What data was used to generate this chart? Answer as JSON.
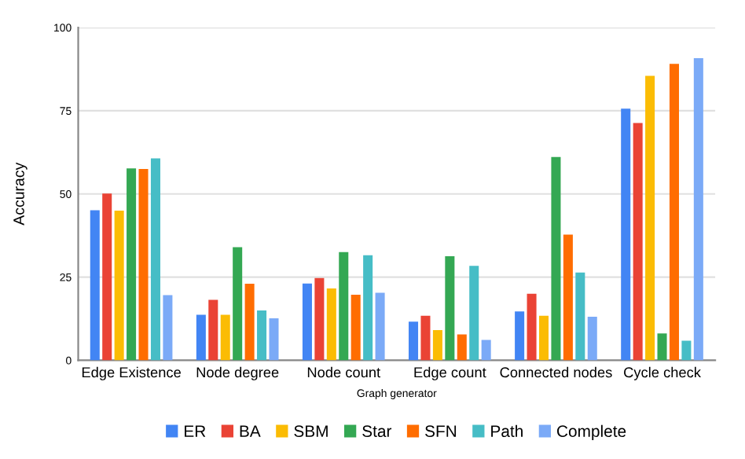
{
  "chart_data": {
    "type": "bar",
    "xlabel": "Graph generator",
    "ylabel": "Accuracy",
    "categories": [
      "Edge Existence",
      "Node degree",
      "Node count",
      "Edge count",
      "Connected nodes",
      "Cycle check"
    ],
    "series": [
      {
        "name": "ER",
        "color": "#4285f4",
        "values": [
          45.1,
          13.7,
          23.1,
          11.6,
          14.7,
          75.6
        ]
      },
      {
        "name": "BA",
        "color": "#ea4335",
        "values": [
          50.1,
          18.2,
          24.7,
          13.4,
          20,
          71.3
        ]
      },
      {
        "name": "SBM",
        "color": "#fbbc04",
        "values": [
          45,
          13.7,
          21.6,
          9.1,
          13.4,
          85.5
        ]
      },
      {
        "name": "Star",
        "color": "#34a853",
        "values": [
          57.7,
          34,
          32.5,
          31.3,
          61.1,
          8.1
        ]
      },
      {
        "name": "SFN",
        "color": "#ff6d01",
        "values": [
          57.5,
          23,
          19.7,
          7.8,
          37.8,
          89.1
        ]
      },
      {
        "name": "Path",
        "color": "#46bdc6",
        "values": [
          60.7,
          15,
          31.6,
          28.4,
          26.4,
          5.9
        ]
      },
      {
        "name": "Complete",
        "color": "#7baaf7",
        "values": [
          19.6,
          12.6,
          20.3,
          6.1,
          13.1,
          90.8
        ]
      }
    ],
    "ylim": [
      0,
      100
    ],
    "yticks": [
      0,
      25,
      50,
      75,
      100
    ],
    "grid": "y",
    "legend": "bottom"
  }
}
